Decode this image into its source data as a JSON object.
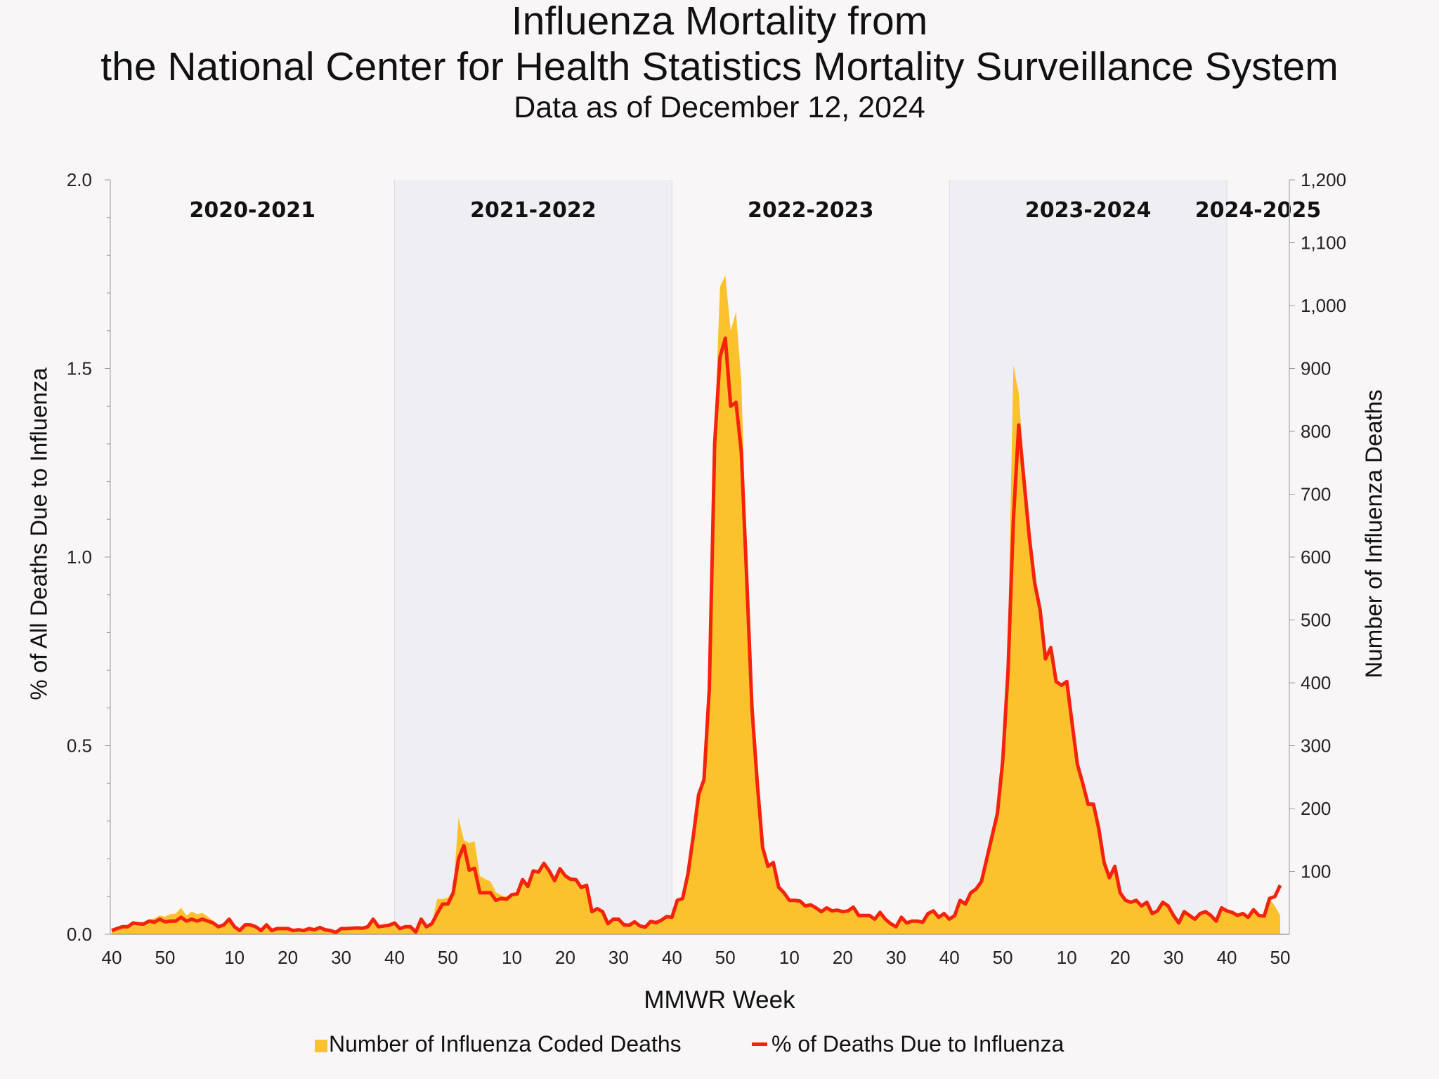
{
  "title": {
    "line1": "Influenza Mortality from",
    "line2": "the National Center for Health Statistics Mortality Surveillance System",
    "subtitle": "Data as of December 12, 2024"
  },
  "legend": {
    "area_label": "Number of Influenza Coded Deaths",
    "line_label": "% of Deaths Due to Influenza"
  },
  "chart_data": {
    "type": "area+line",
    "title": "Influenza Mortality from the National Center for Health Statistics Mortality Surveillance System",
    "subtitle": "Data as of December 12, 2024",
    "xlabel": "MMWR Week",
    "ylabel_left": "% of All Deaths Due to Influenza",
    "ylabel_right": "Number of Influenza Deaths",
    "ylim_left": [
      0,
      2.0
    ],
    "ylim_right": [
      0,
      1200
    ],
    "left_ticks": [
      "0.0",
      "0.5",
      "1.0",
      "1.5",
      "2.0"
    ],
    "right_ticks": [
      "100",
      "200",
      "300",
      "400",
      "500",
      "600",
      "700",
      "800",
      "900",
      "1,000",
      "1,100",
      "1,200"
    ],
    "legend_position": "bottom",
    "grid": false,
    "colors": {
      "area": "#fbc22e",
      "line": "#f5230b",
      "shaded_season": "#eeeef3",
      "background": "#f9f6f8"
    },
    "series": [
      {
        "name": "Number of Influenza Coded Deaths",
        "type": "area",
        "axis": "right"
      },
      {
        "name": "% of Deaths Due to Influenza",
        "type": "line",
        "axis": "left"
      }
    ],
    "seasons": [
      {
        "label": "2020-2021",
        "shaded": false,
        "weeks": [
          40,
          41,
          42,
          43,
          44,
          45,
          46,
          47,
          48,
          49,
          50,
          51,
          52,
          53,
          1,
          2,
          3,
          4,
          5,
          6,
          7,
          8,
          9,
          10,
          11,
          12,
          13,
          14,
          15,
          16,
          17,
          18,
          19,
          20,
          21,
          22,
          23,
          24,
          25,
          26,
          27,
          28,
          29,
          30,
          31,
          32,
          33,
          34,
          35,
          36,
          37,
          38,
          39
        ],
        "pct": [
          0.01,
          0.015,
          0.02,
          0.02,
          0.03,
          0.028,
          0.027,
          0.035,
          0.032,
          0.04,
          0.033,
          0.035,
          0.035,
          0.045,
          0.035,
          0.04,
          0.035,
          0.04,
          0.035,
          0.03,
          0.02,
          0.025,
          0.04,
          0.02,
          0.01,
          0.025,
          0.025,
          0.02,
          0.01,
          0.025,
          0.01,
          0.015,
          0.015,
          0.015,
          0.01,
          0.012,
          0.01,
          0.015,
          0.012,
          0.018,
          0.012,
          0.01,
          0.005,
          0.015,
          0.015,
          0.016,
          0.017,
          0.016,
          0.02,
          0.04,
          0.02,
          0.022,
          0.024
        ],
        "deaths": [
          8,
          10,
          12,
          13,
          18,
          18,
          20,
          24,
          25,
          30,
          28,
          32,
          33,
          42,
          30,
          36,
          32,
          34,
          28,
          22,
          14,
          15,
          22,
          14,
          7,
          15,
          15,
          12,
          7,
          14,
          7,
          9,
          9,
          9,
          7,
          8,
          7,
          9,
          8,
          11,
          8,
          7,
          4,
          9,
          9,
          10,
          10,
          10,
          12,
          24,
          12,
          13,
          15
        ]
      },
      {
        "label": "2021-2022",
        "shaded": true,
        "weeks": [
          40,
          41,
          42,
          43,
          44,
          45,
          46,
          47,
          48,
          49,
          50,
          51,
          52,
          1,
          2,
          3,
          4,
          5,
          6,
          7,
          8,
          9,
          10,
          11,
          12,
          13,
          14,
          15,
          16,
          17,
          18,
          19,
          20,
          21,
          22,
          23,
          24,
          25,
          26,
          27,
          28,
          29,
          30,
          31,
          32,
          33,
          34,
          35,
          36,
          37,
          38,
          39
        ],
        "pct": [
          0.03,
          0.015,
          0.02,
          0.02,
          0.006,
          0.04,
          0.02,
          0.028,
          0.055,
          0.08,
          0.08,
          0.11,
          0.2,
          0.235,
          0.17,
          0.175,
          0.11,
          0.11,
          0.11,
          0.09,
          0.095,
          0.093,
          0.105,
          0.107,
          0.145,
          0.127,
          0.168,
          0.165,
          0.188,
          0.168,
          0.142,
          0.174,
          0.155,
          0.146,
          0.145,
          0.124,
          0.13,
          0.06,
          0.068,
          0.06,
          0.028,
          0.04,
          0.04,
          0.025,
          0.024,
          0.033,
          0.022,
          0.019,
          0.034,
          0.031,
          0.037,
          0.047
        ],
        "deaths": [
          18,
          10,
          12,
          12,
          5,
          24,
          13,
          17,
          56,
          56,
          58,
          70,
          186,
          150,
          145,
          148,
          93,
          88,
          84,
          67,
          62,
          60,
          63,
          64,
          87,
          76,
          101,
          99,
          113,
          101,
          85,
          104,
          93,
          88,
          87,
          74,
          78,
          36,
          41,
          36,
          17,
          24,
          24,
          15,
          14,
          20,
          13,
          11,
          20,
          19,
          22,
          28
        ]
      },
      {
        "label": "2022-2023",
        "shaded": false,
        "weeks": [
          40,
          41,
          42,
          43,
          44,
          45,
          46,
          47,
          48,
          49,
          50,
          51,
          52,
          1,
          2,
          3,
          4,
          5,
          6,
          7,
          8,
          9,
          10,
          11,
          12,
          13,
          14,
          15,
          16,
          17,
          18,
          19,
          20,
          21,
          22,
          23,
          24,
          25,
          26,
          27,
          28,
          29,
          30,
          31,
          32,
          33,
          34,
          35,
          36,
          37,
          38,
          39
        ],
        "pct": [
          0.045,
          0.09,
          0.095,
          0.16,
          0.26,
          0.37,
          0.41,
          0.65,
          1.3,
          1.53,
          1.58,
          1.4,
          1.41,
          1.28,
          0.95,
          0.6,
          0.4,
          0.23,
          0.18,
          0.19,
          0.125,
          0.11,
          0.09,
          0.09,
          0.088,
          0.075,
          0.078,
          0.07,
          0.06,
          0.07,
          0.062,
          0.064,
          0.06,
          0.062,
          0.072,
          0.05,
          0.05,
          0.05,
          0.04,
          0.058,
          0.04,
          0.028,
          0.02,
          0.045,
          0.03,
          0.035,
          0.035,
          0.032,
          0.055,
          0.062,
          0.045,
          0.055
        ],
        "deaths": [
          27,
          54,
          57,
          96,
          156,
          222,
          250,
          400,
          800,
          1030,
          1048,
          960,
          990,
          880,
          600,
          380,
          250,
          140,
          108,
          114,
          75,
          66,
          54,
          54,
          53,
          45,
          47,
          42,
          36,
          42,
          37,
          38,
          36,
          37,
          43,
          30,
          30,
          30,
          24,
          35,
          24,
          17,
          12,
          27,
          18,
          21,
          21,
          19,
          33,
          37,
          27,
          33
        ]
      },
      {
        "label": "2023-2024",
        "shaded": true,
        "weeks": [
          40,
          41,
          42,
          43,
          44,
          45,
          46,
          47,
          48,
          49,
          50,
          51,
          52,
          1,
          2,
          3,
          4,
          5,
          6,
          7,
          8,
          9,
          10,
          11,
          12,
          13,
          14,
          15,
          16,
          17,
          18,
          19,
          20,
          21,
          22,
          23,
          24,
          25,
          26,
          27,
          28,
          29,
          30,
          31,
          32,
          33,
          34,
          35,
          36,
          37,
          38,
          39
        ],
        "pct": [
          0.04,
          0.05,
          0.09,
          0.08,
          0.11,
          0.12,
          0.14,
          0.2,
          0.26,
          0.32,
          0.46,
          0.7,
          1.1,
          1.35,
          1.2,
          1.05,
          0.93,
          0.86,
          0.73,
          0.76,
          0.67,
          0.66,
          0.67,
          0.56,
          0.45,
          0.4,
          0.345,
          0.345,
          0.28,
          0.19,
          0.15,
          0.18,
          0.11,
          0.09,
          0.085,
          0.09,
          0.075,
          0.085,
          0.055,
          0.062,
          0.085,
          0.075,
          0.05,
          0.03,
          0.06,
          0.05,
          0.04,
          0.055,
          0.06,
          0.05,
          0.035,
          0.07
        ],
        "deaths": [
          24,
          30,
          54,
          48,
          66,
          72,
          84,
          120,
          156,
          192,
          276,
          480,
          905,
          860,
          740,
          630,
          560,
          520,
          440,
          456,
          402,
          396,
          402,
          336,
          270,
          240,
          207,
          207,
          168,
          114,
          90,
          108,
          66,
          54,
          51,
          54,
          45,
          51,
          33,
          37,
          51,
          45,
          30,
          18,
          36,
          30,
          24,
          33,
          36,
          30,
          21,
          42
        ]
      },
      {
        "label": "2024-2025",
        "shaded": false,
        "weeks": [
          40,
          41,
          42,
          43,
          44,
          45,
          46,
          47,
          48,
          49,
          50
        ],
        "pct": [
          0.062,
          0.058,
          0.05,
          0.055,
          0.045,
          0.065,
          0.05,
          0.048,
          0.095,
          0.1,
          0.13
        ],
        "deaths": [
          37,
          35,
          30,
          33,
          27,
          39,
          30,
          29,
          57,
          45,
          30
        ]
      }
    ]
  }
}
